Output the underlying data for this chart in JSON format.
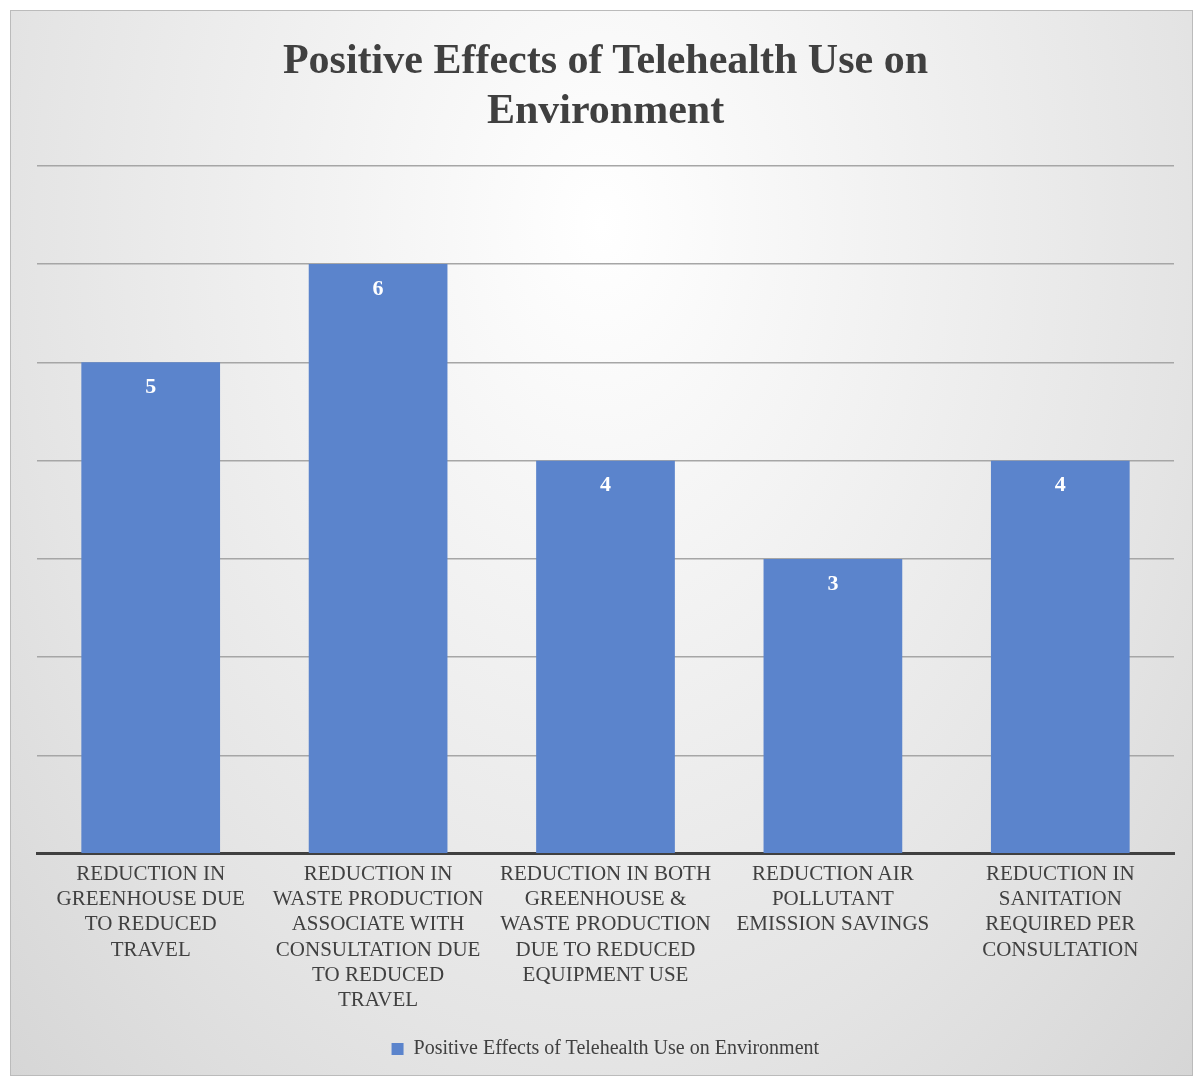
{
  "chart_data": {
    "type": "bar",
    "title": "Positive Effects of Telehealth Use on Environment",
    "categories": [
      "REDUCTION IN GREENHOUSE DUE TO REDUCED TRAVEL",
      "REDUCTION IN WASTE PRODUCTION ASSOCIATE WITH CONSULTATION DUE TO REDUCED TRAVEL",
      "REDUCTION IN BOTH GREENHOUSE & WASTE PRODUCTION DUE TO REDUCED EQUIPMENT USE",
      "REDUCTION AIR POLLUTANT EMISSION SAVINGS",
      "REDUCTION IN SANITATION REQUIRED PER CONSULTATION"
    ],
    "series": [
      {
        "name": "Positive Effects of Telehealth Use on Environment",
        "color": "#5b84cc",
        "values": [
          5,
          6,
          4,
          3,
          4
        ]
      }
    ],
    "ylim": [
      0,
      7
    ],
    "yticks": [
      {
        "value": 0,
        "label": null
      },
      {
        "value": 1,
        "label": null
      },
      {
        "value": 2,
        "label": null
      },
      {
        "value": 3,
        "label": null
      },
      {
        "value": 4,
        "label": null
      },
      {
        "value": 5,
        "label": null
      },
      {
        "value": 6,
        "label": null
      },
      {
        "value": 7,
        "label": null
      }
    ],
    "tick_labels": "x",
    "grid": "y",
    "legend": "bottom",
    "data_labels": true
  }
}
